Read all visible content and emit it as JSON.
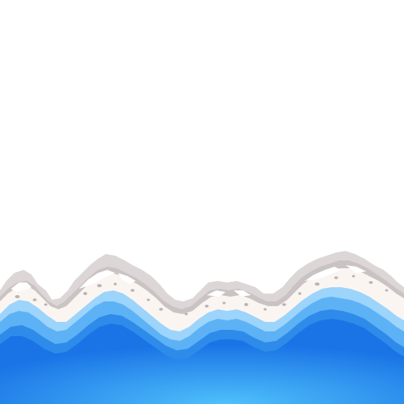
{
  "scene": {
    "subject": "sea-foam-wave-edge",
    "colors": {
      "background": "#ffffff",
      "foam_outer": "#dcd6d6",
      "foam_shadow": "#c9c3c3",
      "foam_body": "#fbf5f2",
      "foam_highlight": "#ffffff",
      "pebble": "#b9b3b3",
      "water_light": "#9cd4fb",
      "water_mid": "#5db2f5",
      "water_edge": "#2f8bea",
      "water_deep": "#1a74e6",
      "water_glow": "#4fc0fb"
    }
  }
}
